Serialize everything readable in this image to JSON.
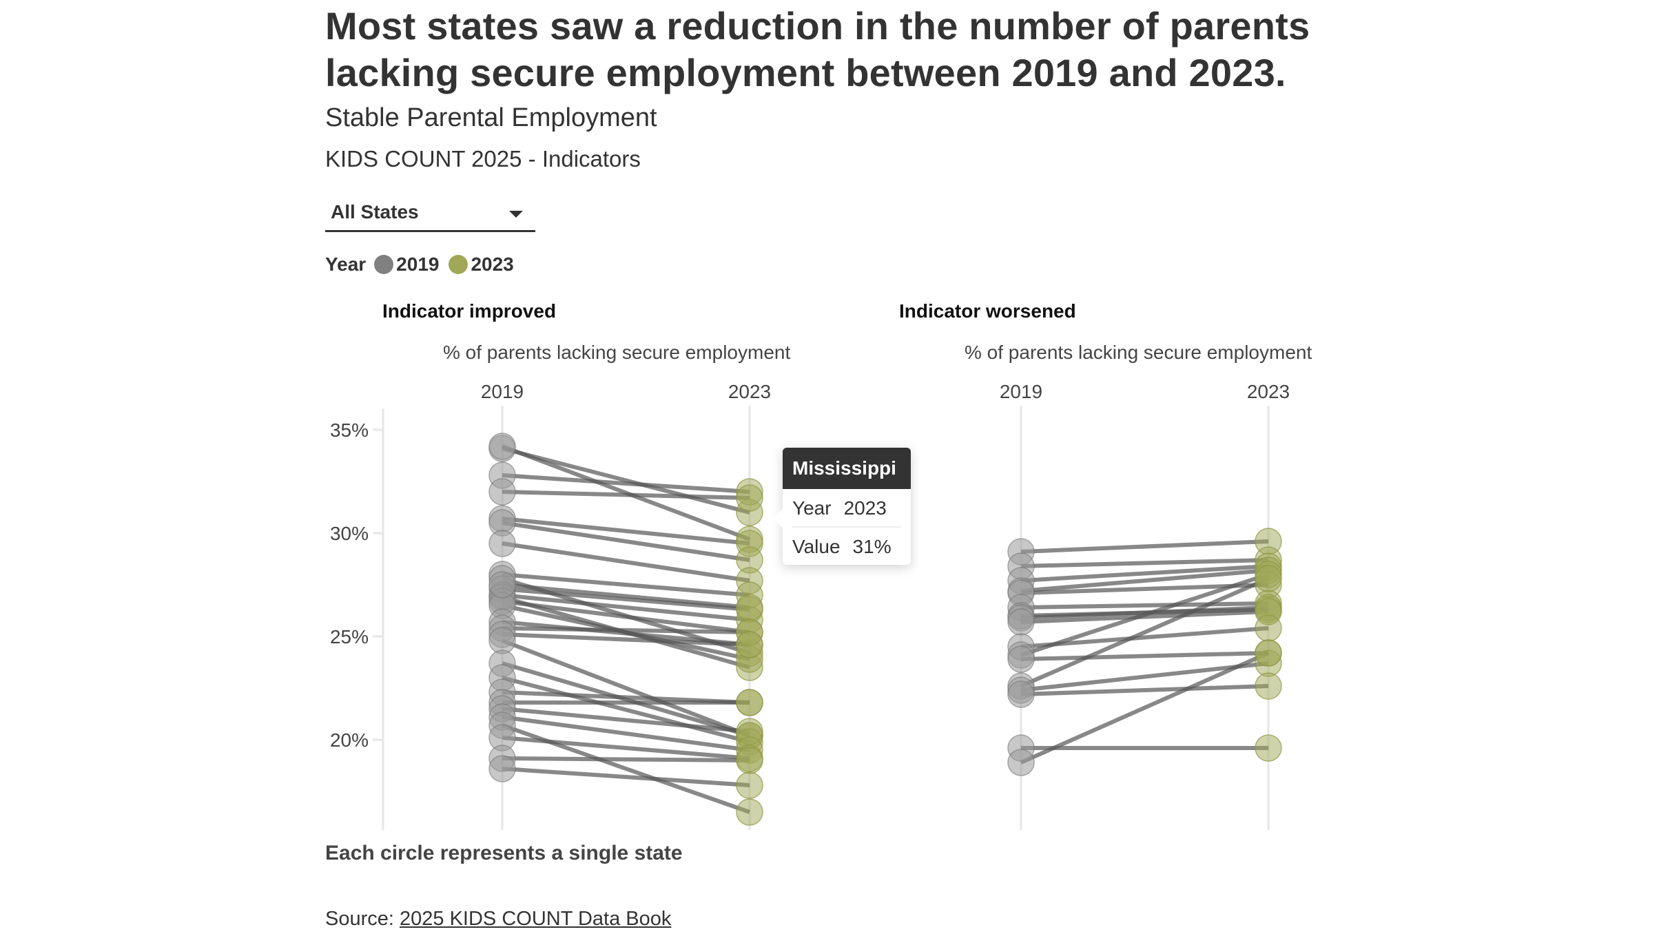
{
  "title": "Most states saw a reduction in the number of parents lacking secure employment between 2019 and 2023.",
  "subtitle": "Stable Parental Employment",
  "subsubtitle": "KIDS COUNT 2025 - Indicators",
  "filter": {
    "selected": "All States"
  },
  "legend": {
    "title": "Year",
    "items": [
      {
        "label": "2019",
        "color": "#808080"
      },
      {
        "label": "2023",
        "color": "#a0a857"
      }
    ]
  },
  "tooltip": {
    "state": "Mississippi",
    "rows": [
      {
        "key": "Year",
        "value": "2023"
      },
      {
        "key": "Value",
        "value": "31%"
      }
    ]
  },
  "caption": "Each circle represents a single state",
  "source": {
    "prefix": "Source: ",
    "link_text": "2025 KIDS COUNT Data Book"
  },
  "colors": {
    "y2019": "#9a9a9a",
    "y2023": "#a0a857",
    "line": "#555555",
    "grid": "#e6e6e6"
  },
  "chart_data": [
    {
      "type": "line",
      "subtype": "slope",
      "panel_title": "Indicator improved",
      "title": "% of parents lacking secure employment",
      "categories": [
        "2019",
        "2023"
      ],
      "ylabel": "% of parents lacking secure employment",
      "yticks": [
        "35%",
        "30%",
        "25%",
        "20%"
      ],
      "ytick_values": [
        35,
        30,
        25,
        20
      ],
      "ylim": [
        15.5,
        36
      ],
      "grid": false,
      "series": [
        {
          "name": "Mississippi",
          "values": [
            34.1,
            31.0
          ]
        },
        {
          "name": "state",
          "values": [
            34.2,
            29.7
          ]
        },
        {
          "name": "state",
          "values": [
            32.8,
            32.0
          ]
        },
        {
          "name": "state",
          "values": [
            32.0,
            31.7
          ]
        },
        {
          "name": "state",
          "values": [
            30.7,
            29.5
          ]
        },
        {
          "name": "state",
          "values": [
            30.5,
            28.7
          ]
        },
        {
          "name": "state",
          "values": [
            29.5,
            27.7
          ]
        },
        {
          "name": "state",
          "values": [
            28.0,
            27.0
          ]
        },
        {
          "name": "state",
          "values": [
            27.8,
            24.2
          ]
        },
        {
          "name": "state",
          "values": [
            27.3,
            26.3
          ]
        },
        {
          "name": "state",
          "values": [
            27.0,
            25.8
          ]
        },
        {
          "name": "state",
          "values": [
            26.9,
            23.5
          ]
        },
        {
          "name": "state",
          "values": [
            26.7,
            25.2
          ]
        },
        {
          "name": "state",
          "values": [
            26.5,
            23.9
          ]
        },
        {
          "name": "state",
          "values": [
            27.5,
            26.4
          ]
        },
        {
          "name": "state",
          "values": [
            25.7,
            24.6
          ]
        },
        {
          "name": "state",
          "values": [
            25.4,
            25.2
          ]
        },
        {
          "name": "state",
          "values": [
            25.1,
            24.6
          ]
        },
        {
          "name": "state",
          "values": [
            24.8,
            20.2
          ]
        },
        {
          "name": "state",
          "values": [
            23.7,
            20.2
          ]
        },
        {
          "name": "state",
          "values": [
            23.0,
            19.9
          ]
        },
        {
          "name": "state",
          "values": [
            22.3,
            21.8
          ]
        },
        {
          "name": "state",
          "values": [
            21.8,
            21.8
          ]
        },
        {
          "name": "state",
          "values": [
            21.5,
            20.4
          ]
        },
        {
          "name": "state",
          "values": [
            21.1,
            19.5
          ]
        },
        {
          "name": "state",
          "values": [
            20.7,
            16.5
          ]
        },
        {
          "name": "state",
          "values": [
            20.1,
            19.1
          ]
        },
        {
          "name": "state",
          "values": [
            19.1,
            19.0
          ]
        },
        {
          "name": "state",
          "values": [
            18.6,
            17.8
          ]
        }
      ]
    },
    {
      "type": "line",
      "subtype": "slope",
      "panel_title": "Indicator worsened",
      "title": "% of parents lacking secure employment",
      "categories": [
        "2019",
        "2023"
      ],
      "ylabel": "% of parents lacking secure employment",
      "ylim": [
        15.5,
        36
      ],
      "grid": false,
      "series": [
        {
          "name": "state",
          "values": [
            29.1,
            29.6
          ]
        },
        {
          "name": "state",
          "values": [
            28.4,
            28.7
          ]
        },
        {
          "name": "state",
          "values": [
            27.7,
            28.4
          ]
        },
        {
          "name": "state",
          "values": [
            27.2,
            28.2
          ]
        },
        {
          "name": "state",
          "values": [
            27.1,
            27.5
          ]
        },
        {
          "name": "state",
          "values": [
            26.4,
            26.6
          ]
        },
        {
          "name": "state",
          "values": [
            26.0,
            26.3
          ]
        },
        {
          "name": "state",
          "values": [
            25.9,
            26.4
          ]
        },
        {
          "name": "state",
          "values": [
            25.7,
            26.2
          ]
        },
        {
          "name": "state",
          "values": [
            24.5,
            25.4
          ]
        },
        {
          "name": "state",
          "values": [
            24.1,
            28.0
          ]
        },
        {
          "name": "state",
          "values": [
            23.9,
            24.2
          ]
        },
        {
          "name": "state",
          "values": [
            22.6,
            27.8
          ]
        },
        {
          "name": "state",
          "values": [
            22.4,
            23.7
          ]
        },
        {
          "name": "state",
          "values": [
            22.2,
            22.6
          ]
        },
        {
          "name": "state",
          "values": [
            19.6,
            19.6
          ]
        },
        {
          "name": "state",
          "values": [
            18.9,
            24.2
          ]
        }
      ]
    }
  ]
}
